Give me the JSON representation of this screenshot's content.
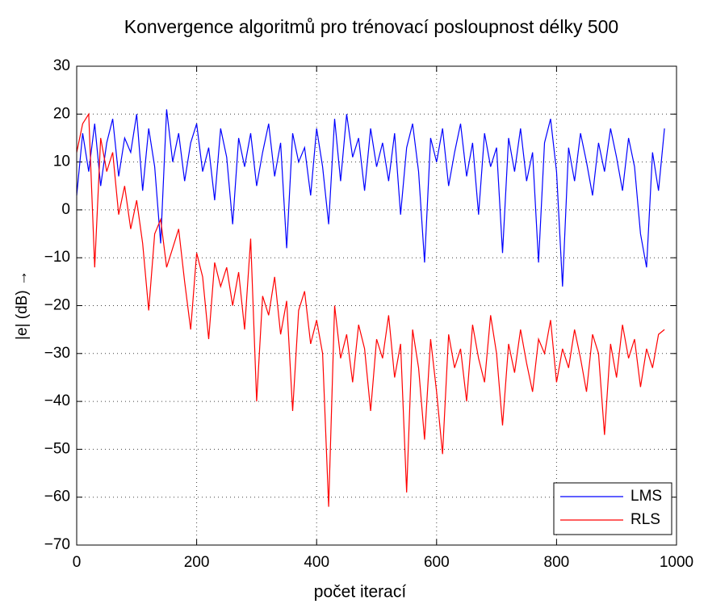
{
  "chart_data": {
    "type": "line",
    "title": "Konvergence algoritmů pro trénovací posloupnost délky 500",
    "xlabel": "počet iterací",
    "ylabel": "|e| (dB) →",
    "x": [
      0,
      10,
      20,
      30,
      40,
      50,
      60,
      70,
      80,
      90,
      100,
      110,
      120,
      130,
      140,
      150,
      160,
      170,
      180,
      190,
      200,
      210,
      220,
      230,
      240,
      250,
      260,
      270,
      280,
      290,
      300,
      310,
      320,
      330,
      340,
      350,
      360,
      370,
      380,
      390,
      400,
      410,
      420,
      430,
      440,
      450,
      460,
      470,
      480,
      490,
      500,
      510,
      520,
      530,
      540,
      550,
      560,
      570,
      580,
      590,
      600,
      610,
      620,
      630,
      640,
      650,
      660,
      670,
      680,
      690,
      700,
      710,
      720,
      730,
      740,
      750,
      760,
      770,
      780,
      790,
      800,
      810,
      820,
      830,
      840,
      850,
      860,
      870,
      880,
      890,
      900,
      910,
      920,
      930,
      940,
      950,
      960,
      970,
      980
    ],
    "series": [
      {
        "name": "LMS",
        "color": "#0000ff",
        "values": [
          3,
          16,
          8,
          18,
          5,
          14,
          19,
          7,
          15,
          12,
          20,
          4,
          17,
          9,
          -7,
          21,
          10,
          16,
          6,
          14,
          18,
          8,
          13,
          2,
          17,
          11,
          -3,
          15,
          9,
          16,
          5,
          12,
          18,
          7,
          14,
          -8,
          16,
          10,
          13,
          3,
          17,
          9,
          -3,
          19,
          6,
          20,
          11,
          15,
          4,
          17,
          9,
          14,
          6,
          16,
          -1,
          13,
          18,
          8,
          -11,
          15,
          10,
          17,
          5,
          12,
          18,
          7,
          14,
          -1,
          16,
          9,
          13,
          -9,
          15,
          8,
          17,
          6,
          12,
          -11,
          14,
          19,
          8,
          -16,
          13,
          6,
          16,
          10,
          3,
          14,
          8,
          17,
          11,
          4,
          15,
          9,
          -5,
          -12,
          12,
          4,
          17
        ]
      },
      {
        "name": "RLS",
        "color": "#ff0000",
        "values": [
          12,
          18,
          20,
          -12,
          15,
          8,
          12,
          -1,
          5,
          -4,
          2,
          -7,
          -21,
          -5,
          -2,
          -12,
          -8,
          -4,
          -15,
          -25,
          -9,
          -14,
          -27,
          -11,
          -16,
          -12,
          -20,
          -13,
          -25,
          -6,
          -40,
          -18,
          -22,
          -14,
          -26,
          -19,
          -42,
          -21,
          -17,
          -28,
          -23,
          -30,
          -62,
          -20,
          -31,
          -26,
          -36,
          -24,
          -29,
          -42,
          -27,
          -31,
          -22,
          -35,
          -28,
          -59,
          -25,
          -33,
          -48,
          -27,
          -38,
          -51,
          -26,
          -33,
          -29,
          -40,
          -24,
          -31,
          -36,
          -22,
          -30,
          -45,
          -28,
          -34,
          -25,
          -32,
          -38,
          -27,
          -30,
          -23,
          -36,
          -29,
          -33,
          -25,
          -31,
          -38,
          -26,
          -30,
          -47,
          -28,
          -35,
          -24,
          -31,
          -27,
          -37,
          -29,
          -33,
          -26,
          -25
        ]
      }
    ],
    "xlim": [
      0,
      1000
    ],
    "xticks": [
      0,
      200,
      400,
      600,
      800,
      1000
    ],
    "ylim": [
      -70,
      30
    ],
    "yticks": [
      {
        "value": -70,
        "label": "−70"
      },
      {
        "value": -60,
        "label": "−60"
      },
      {
        "value": -50,
        "label": "−50"
      },
      {
        "value": -40,
        "label": "−40"
      },
      {
        "value": -30,
        "label": "−30"
      },
      {
        "value": -20,
        "label": "−20"
      },
      {
        "value": -10,
        "label": "−10"
      },
      0,
      10,
      20,
      30
    ],
    "grid": true,
    "legend": "lower right"
  }
}
